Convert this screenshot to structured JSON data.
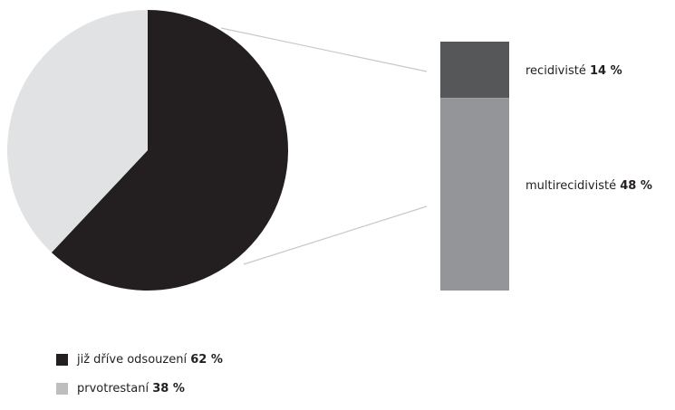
{
  "chart_data": {
    "type": "pie",
    "pie": {
      "slices": [
        {
          "label": "již dříve odsouzení",
          "value": 62,
          "value_text": "62 %",
          "color": "#231f20"
        },
        {
          "label": "prvotrestaní",
          "value": 38,
          "value_text": "38 %",
          "color": "#e1e2e3"
        }
      ]
    },
    "breakdown": {
      "of_slice": "již dříve odsouzení",
      "segments": [
        {
          "label": "recidivisté",
          "value": 14,
          "value_text": "14 %",
          "color": "#555759"
        },
        {
          "label": "multirecidivisté",
          "value": 48,
          "value_text": "48 %",
          "color": "#939598"
        }
      ]
    },
    "connector_color": "#c7c8ca"
  }
}
